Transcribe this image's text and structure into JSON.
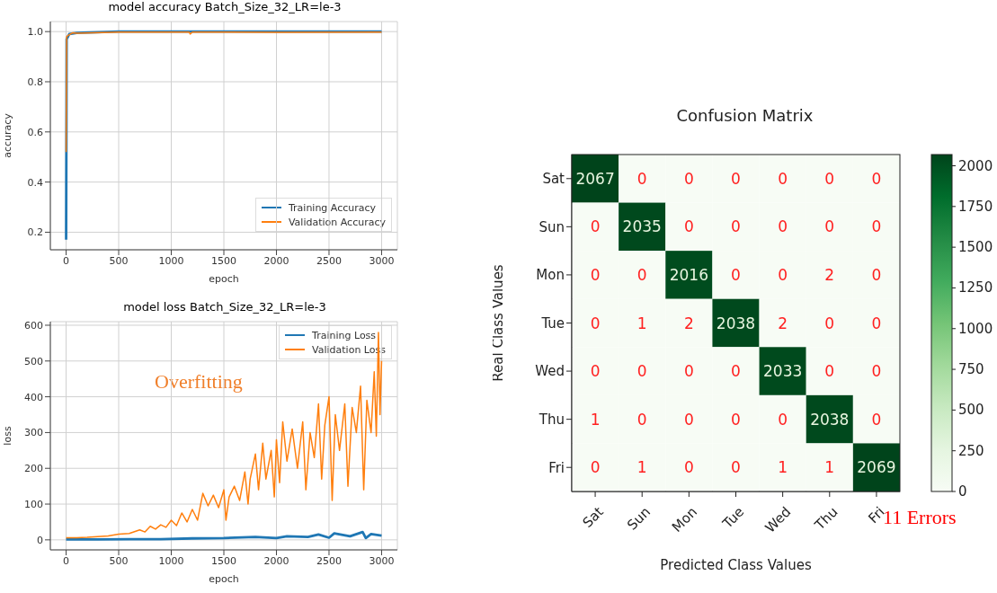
{
  "chart_data": [
    {
      "type": "line",
      "title": "model accuracy Batch_Size_32_LR=le-3",
      "xlabel": "epoch",
      "ylabel": "accuracy",
      "series": [
        {
          "name": "Training Accuracy",
          "color": "#1f77b4",
          "x": [
            0,
            5,
            30,
            100,
            500,
            3000
          ],
          "values": [
            0.17,
            0.97,
            0.99,
            0.995,
            1.0,
            1.0
          ]
        },
        {
          "name": "Validation Accuracy",
          "color": "#ff7f0e",
          "x": [
            0,
            5,
            20,
            60,
            100,
            500,
            1170,
            1180,
            1200,
            2000,
            3000
          ],
          "values": [
            0.52,
            0.98,
            0.985,
            0.995,
            0.993,
            0.998,
            0.998,
            0.99,
            0.998,
            0.997,
            0.998
          ]
        }
      ],
      "xlim": [
        -150,
        3150
      ],
      "ylim": [
        0.13,
        1.04
      ],
      "xticks": [
        0,
        500,
        1000,
        1500,
        2000,
        2500,
        3000
      ],
      "yticks": [
        0.2,
        0.4,
        0.6,
        0.8,
        {
          "value": 1.0,
          "label": "1.0"
        }
      ],
      "grid": true,
      "legend": "bottom right"
    },
    {
      "type": "line",
      "title": "model loss Batch_Size_32_LR=le-3",
      "xlabel": "epoch",
      "ylabel": "loss",
      "annotations": [
        "Overfitting"
      ],
      "series": [
        {
          "name": "Training Loss",
          "color": "#1f77b4",
          "x": [
            0,
            300,
            600,
            900,
            1200,
            1500,
            1800,
            2000,
            2100,
            2300,
            2400,
            2500,
            2550,
            2700,
            2820,
            2850,
            2900,
            3000
          ],
          "values": [
            1,
            1,
            2,
            2,
            4,
            5,
            8,
            5,
            10,
            8,
            15,
            6,
            18,
            10,
            22,
            5,
            16,
            12
          ]
        },
        {
          "name": "Validation Loss",
          "color": "#ff7f0e",
          "x": [
            0,
            100,
            200,
            300,
            400,
            500,
            600,
            700,
            750,
            800,
            850,
            900,
            950,
            1000,
            1050,
            1100,
            1150,
            1200,
            1250,
            1300,
            1350,
            1400,
            1450,
            1500,
            1520,
            1550,
            1600,
            1650,
            1700,
            1730,
            1750,
            1800,
            1830,
            1870,
            1900,
            1950,
            1980,
            2000,
            2030,
            2060,
            2100,
            2150,
            2200,
            2250,
            2280,
            2320,
            2360,
            2400,
            2430,
            2460,
            2500,
            2530,
            2560,
            2600,
            2650,
            2680,
            2720,
            2760,
            2800,
            2830,
            2860,
            2900,
            2930,
            2950,
            2970,
            2985,
            3000
          ],
          "values": [
            6,
            6,
            7,
            9,
            11,
            16,
            18,
            28,
            22,
            38,
            30,
            42,
            35,
            55,
            40,
            75,
            50,
            85,
            55,
            130,
            95,
            125,
            90,
            140,
            55,
            120,
            150,
            110,
            190,
            100,
            170,
            240,
            140,
            270,
            170,
            250,
            120,
            280,
            160,
            330,
            220,
            310,
            200,
            330,
            140,
            300,
            230,
            380,
            170,
            320,
            400,
            110,
            350,
            250,
            380,
            150,
            370,
            300,
            430,
            140,
            390,
            300,
            470,
            290,
            580,
            350,
            500
          ]
        }
      ],
      "xlim": [
        -150,
        3150
      ],
      "ylim": [
        -28,
        610
      ],
      "xticks": [
        0,
        500,
        1000,
        1500,
        2000,
        2500,
        3000
      ],
      "yticks": [
        0,
        100,
        200,
        300,
        400,
        500,
        600
      ],
      "grid": true,
      "legend": "top right"
    },
    {
      "type": "heatmap",
      "title": "Confusion Matrix",
      "xlabel": "Predicted Class Values",
      "ylabel": "Real Class Values",
      "annotations": [
        "11 Errors"
      ],
      "categories": [
        "Sat",
        "Sun",
        "Mon",
        "Tue",
        "Wed",
        "Thu",
        "Fri"
      ],
      "y_categories": [
        "Sat",
        "Sun",
        "Mon",
        "Tue",
        "Wed",
        "Thu",
        "Fri"
      ],
      "cells": [
        [
          2067,
          0,
          0,
          0,
          0,
          0,
          0
        ],
        [
          0,
          2035,
          0,
          0,
          0,
          0,
          0
        ],
        [
          0,
          0,
          2016,
          0,
          0,
          2,
          0
        ],
        [
          0,
          1,
          2,
          2038,
          2,
          0,
          0
        ],
        [
          0,
          0,
          0,
          0,
          2033,
          0,
          0
        ],
        [
          1,
          0,
          0,
          0,
          0,
          2038,
          0
        ],
        [
          0,
          1,
          0,
          0,
          1,
          1,
          2069
        ]
      ],
      "data_labels": true,
      "clim": [
        0,
        2069
      ],
      "cticks": [
        0,
        250,
        500,
        750,
        1000,
        1250,
        1500,
        1750,
        2000
      ]
    }
  ]
}
